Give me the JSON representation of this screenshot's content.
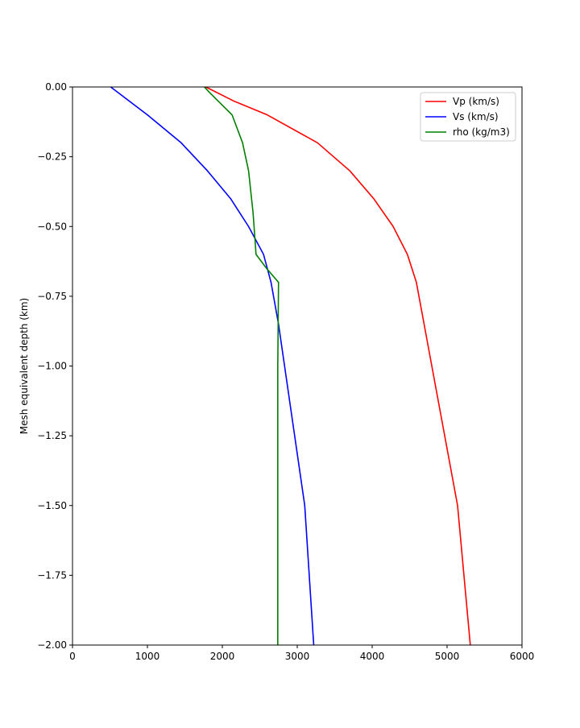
{
  "chart_data": {
    "type": "line",
    "title": "",
    "xlabel": "",
    "ylabel": "Mesh equivalent depth (km)",
    "xlim": [
      0,
      6000
    ],
    "ylim": [
      -2.0,
      0.0
    ],
    "xticks": [
      "0",
      "1000",
      "2000",
      "3000",
      "4000",
      "5000",
      "6000"
    ],
    "yticks": [
      "0.00",
      "−0.25",
      "−0.50",
      "−0.75",
      "−1.00",
      "−1.25",
      "−1.50",
      "−1.75",
      "−2.00"
    ],
    "ytick_values": [
      0.0,
      -0.25,
      -0.5,
      -0.75,
      -1.0,
      -1.25,
      -1.5,
      -1.75,
      -2.0
    ],
    "xtick_values": [
      0,
      1000,
      2000,
      3000,
      4000,
      5000,
      6000
    ],
    "grid": false,
    "legend_position": "top-right",
    "series": [
      {
        "name": "Vp (km/s)",
        "color": "#ff0000",
        "x": [
          1780,
          2150,
          2600,
          3270,
          3700,
          4020,
          4280,
          4470,
          4590,
          5140,
          5310
        ],
        "y": [
          0.0,
          -0.05,
          -0.1,
          -0.2,
          -0.3,
          -0.4,
          -0.5,
          -0.6,
          -0.7,
          -1.5,
          -2.0
        ]
      },
      {
        "name": "Vs (km/s)",
        "color": "#0000ff",
        "x": [
          510,
          1000,
          1450,
          1800,
          2110,
          2350,
          2550,
          2650,
          2750,
          3100,
          3220
        ],
        "y": [
          0.0,
          -0.1,
          -0.2,
          -0.3,
          -0.4,
          -0.5,
          -0.6,
          -0.7,
          -0.85,
          -1.5,
          -2.0
        ]
      },
      {
        "name": "rho (kg/m3)",
        "color": "#008000",
        "x": [
          1760,
          1830,
          2130,
          2270,
          2350,
          2410,
          2450,
          2590,
          2750,
          2740,
          2740
        ],
        "y": [
          0.0,
          -0.02,
          -0.1,
          -0.2,
          -0.3,
          -0.45,
          -0.6,
          -0.65,
          -0.7,
          -1.0,
          -2.0
        ]
      }
    ]
  }
}
